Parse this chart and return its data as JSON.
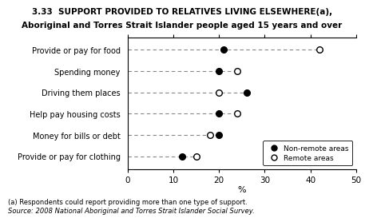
{
  "title_line1": "3.33  SUPPORT PROVIDED TO RELATIVES LIVING ELSEWHERE(a),",
  "title_line2": "Aboriginal and Torres Strait Islander people aged 15 years and over",
  "categories": [
    "Provide or pay for food",
    "Spending money",
    "Driving them places",
    "Help pay housing costs",
    "Money for bills or debt",
    "Provide or pay for clothing"
  ],
  "non_remote": [
    21,
    20,
    26,
    20,
    20,
    12
  ],
  "remote": [
    42,
    24,
    20,
    24,
    18,
    15
  ],
  "xlabel": "%",
  "xlim": [
    0,
    50
  ],
  "xticks": [
    0,
    10,
    20,
    30,
    40,
    50
  ],
  "footnote1": "(a) Respondents could report providing more than one type of support.",
  "footnote2": "Source: 2008 National Aboriginal and Torres Strait Islander Social Survey.",
  "legend_nonremote": "Non-remote areas",
  "legend_remote": "Remote areas",
  "bg_color": "#ffffff",
  "dot_color": "#000000"
}
